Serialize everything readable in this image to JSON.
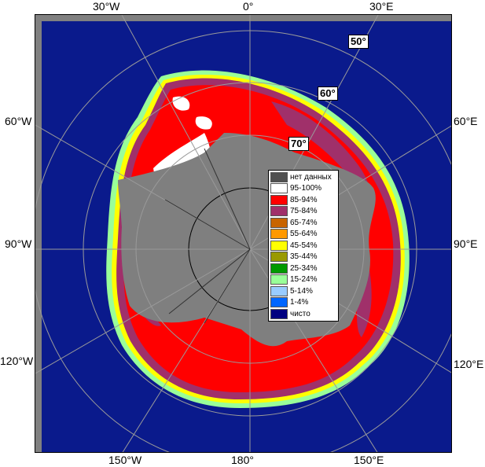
{
  "map": {
    "longitude_labels": {
      "lon_30w_top": "30°W",
      "lon_0": "0°",
      "lon_30e_top": "30°E",
      "lon_60w": "60°W",
      "lon_60e": "60°E",
      "lon_90w": "90°W",
      "lon_90e": "90°E",
      "lon_120w": "120°W",
      "lon_120e": "120°E",
      "lon_150w": "150°W",
      "lon_180": "180°",
      "lon_150e": "150°E"
    },
    "latitude_labels": {
      "lat_50": "50°",
      "lat_60": "60°",
      "lat_70": "70°"
    },
    "colors": {
      "ocean": "#0a1a8c",
      "land_or_nodata": "#7f7f7f",
      "frame_gray": "#808080"
    }
  },
  "legend": {
    "items": [
      {
        "label": "нет данных",
        "color": "#505050"
      },
      {
        "label": "95-100%",
        "color": "#ffffff"
      },
      {
        "label": "85-94%",
        "color": "#ff0000"
      },
      {
        "label": "75-84%",
        "color": "#a0306a"
      },
      {
        "label": "65-74%",
        "color": "#c86400"
      },
      {
        "label": "55-64%",
        "color": "#ff9900"
      },
      {
        "label": "45-54%",
        "color": "#ffff00"
      },
      {
        "label": "35-44%",
        "color": "#999900"
      },
      {
        "label": "25-34%",
        "color": "#009900"
      },
      {
        "label": "15-24%",
        "color": "#99ff99"
      },
      {
        "label": "5-14%",
        "color": "#99ccff"
      },
      {
        "label": "1-4%",
        "color": "#0066ff"
      },
      {
        "label": "чисто",
        "color": "#000080"
      }
    ]
  }
}
